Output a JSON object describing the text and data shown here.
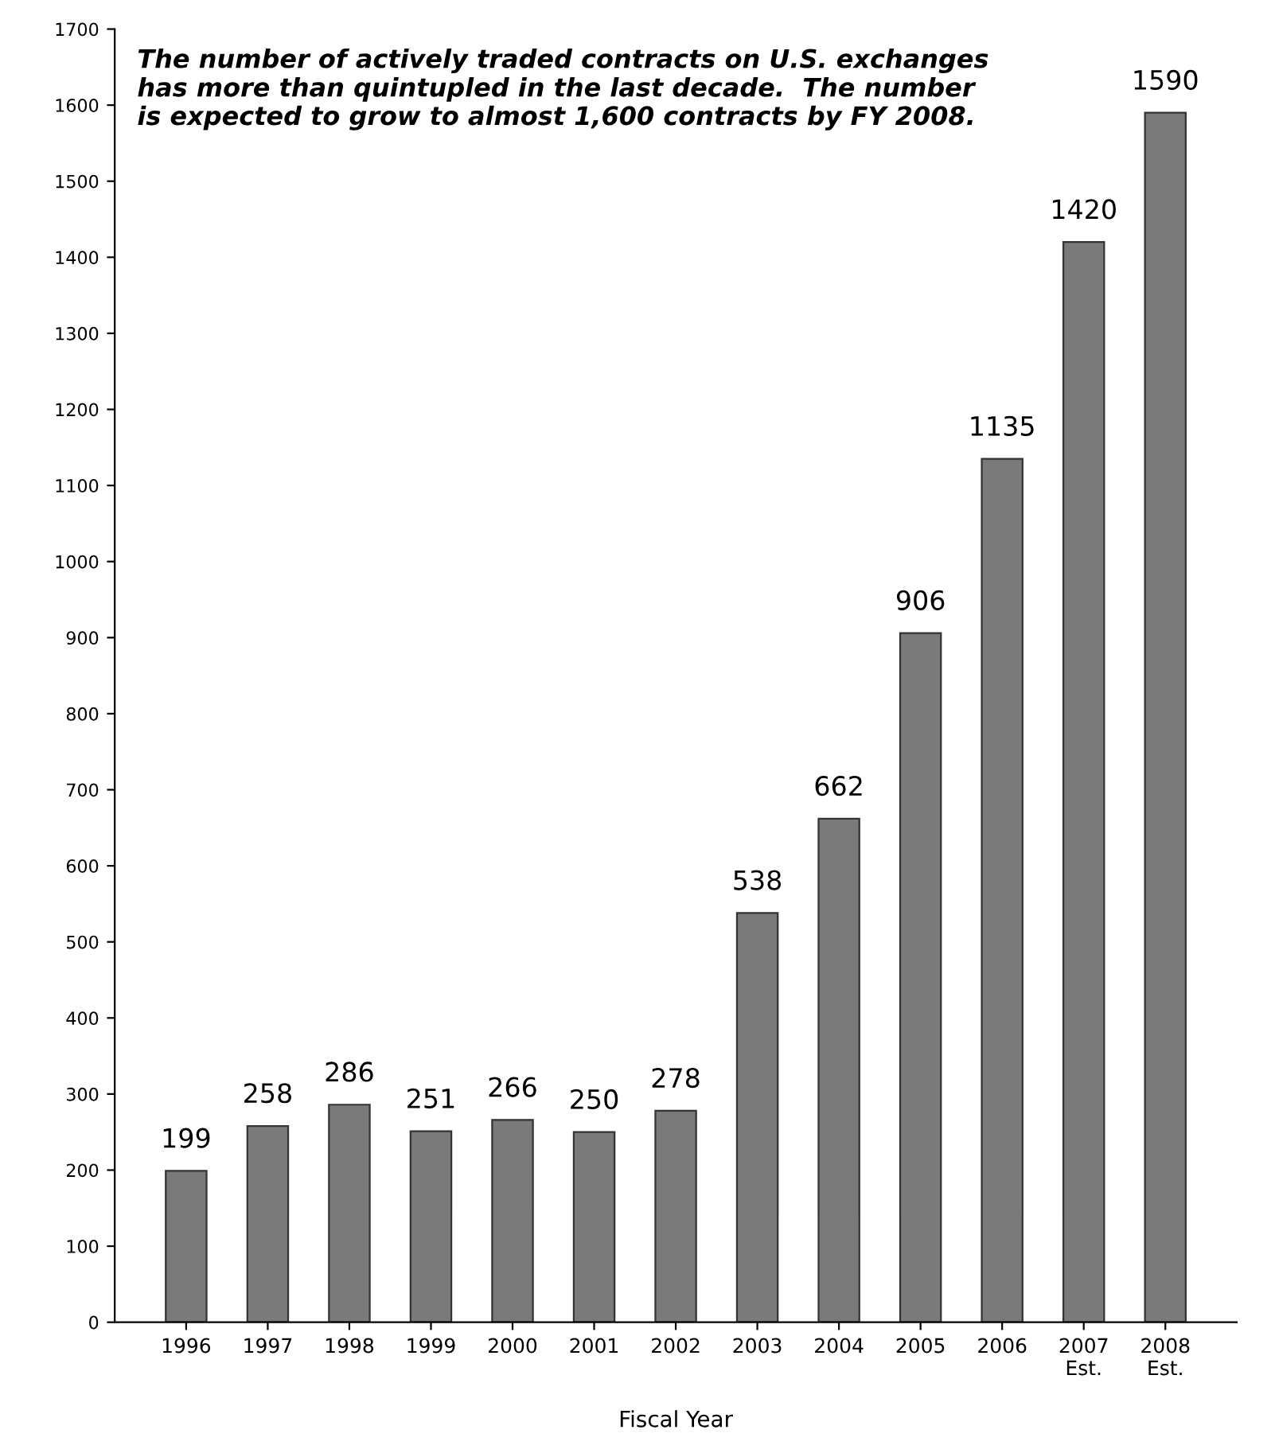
{
  "chart_data": {
    "type": "bar",
    "xlabel": "Fiscal Year",
    "categories": [
      "1996",
      "1997",
      "1998",
      "1999",
      "2000",
      "2001",
      "2002",
      "2003",
      "2004",
      "2005",
      "2006",
      "2007\nEst.",
      "2008\nEst."
    ],
    "values": [
      199,
      258,
      286,
      251,
      266,
      250,
      278,
      538,
      662,
      906,
      1135,
      1420,
      1590
    ],
    "color": "#7a7a7a",
    "ylim": [
      0,
      1700
    ],
    "yticks": [
      0,
      100,
      200,
      300,
      400,
      500,
      600,
      700,
      800,
      900,
      1000,
      1100,
      1200,
      1300,
      1400,
      1500,
      1600,
      1700
    ],
    "grid": false,
    "data_labels": true,
    "annotations": [
      "The number of actively traded contracts on U.S. exchanges\nhas more than quintupled in the last decade.  The number\nis expected to grow to almost 1,600 contracts by FY 2008."
    ]
  }
}
